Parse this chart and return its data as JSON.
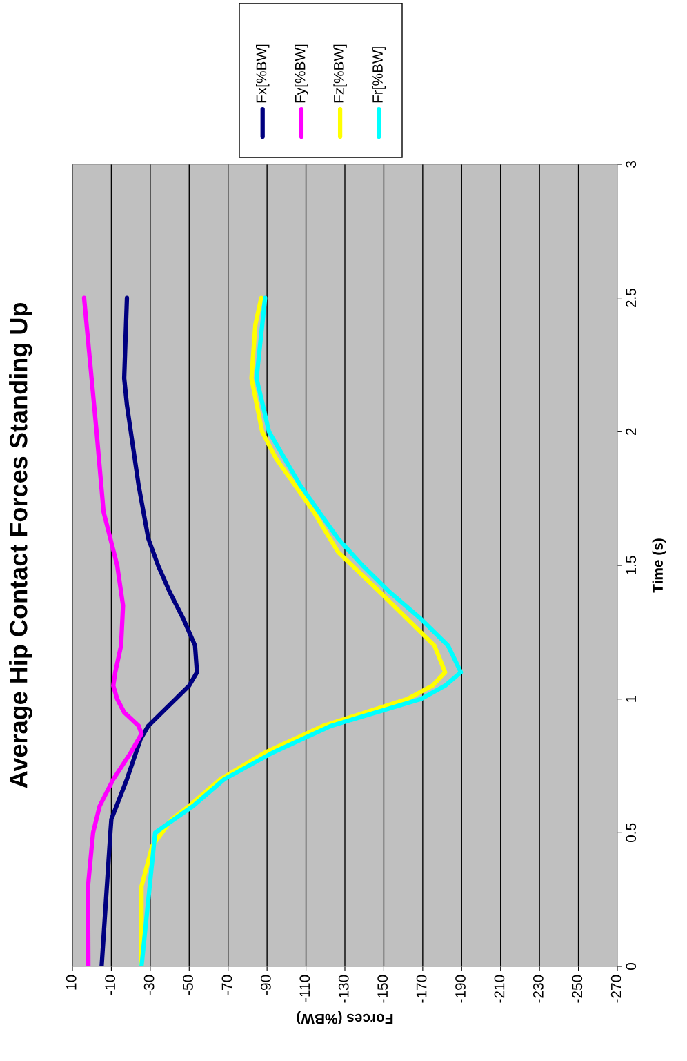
{
  "chart_data": {
    "type": "line",
    "title": "Average Hip Contact Forces Standing Up",
    "xlabel": "Forces (%BW)",
    "ylabel": "Time (s)",
    "xlim": [
      10,
      -270
    ],
    "xticks": [
      10,
      -10,
      -30,
      -50,
      -70,
      -90,
      -110,
      -130,
      -150,
      -170,
      -190,
      -210,
      -230,
      -250,
      -270
    ],
    "ylim": [
      0,
      3
    ],
    "yticks": [
      0,
      0.5,
      1,
      1.5,
      2,
      2.5,
      3
    ],
    "grid": "x",
    "legend": "right",
    "marker": "none",
    "line_style": "solid",
    "series": [
      {
        "name": "Fx[%BW]",
        "color": "#000080",
        "values": [
          0,
          0.5,
          0.55,
          0.7,
          0.85,
          0.9,
          0.95,
          1.0,
          1.05,
          1.1,
          1.2,
          1.3,
          1.4,
          1.5,
          1.6,
          1.8,
          2.0,
          2.1,
          2.2,
          2.5
        ],
        "x": [
          -5,
          -9.5,
          -10,
          -18,
          -25,
          -29,
          -36,
          -43,
          -50,
          -54,
          -53,
          -47,
          -40,
          -34,
          -29,
          -24,
          -20,
          -18,
          -16.6,
          -18
        ]
      },
      {
        "name": "Fy[%BW]",
        "color": "#ff00ff",
        "values": [
          0,
          0.3,
          0.5,
          0.6,
          0.7,
          0.8,
          0.87,
          0.9,
          0.95,
          1.0,
          1.05,
          1.1,
          1.2,
          1.35,
          1.5,
          1.7,
          2.0,
          2.5
        ],
        "x": [
          1.8,
          2,
          -0.6,
          -4,
          -11,
          -20,
          -25.5,
          -24,
          -16.6,
          -13,
          -11,
          -12,
          -15,
          -16,
          -13,
          -6,
          -2.4,
          4
        ]
      },
      {
        "name": "Fz[%BW]",
        "color": "#ffff00",
        "values": [
          0,
          0.3,
          0.45,
          0.55,
          0.6,
          0.7,
          0.8,
          0.9,
          1.0,
          1.05,
          1.1,
          1.2,
          1.3,
          1.4,
          1.55,
          1.7,
          1.9,
          2.0,
          2.2,
          2.4,
          2.5
        ],
        "x": [
          -25.5,
          -25.5,
          -31,
          -41,
          -50,
          -66,
          -89,
          -119,
          -162,
          -175,
          -181.5,
          -176,
          -162,
          -148,
          -126.5,
          -114,
          -94.6,
          -87.5,
          -82,
          -84,
          -87
        ]
      },
      {
        "name": "Fr[%BW]",
        "color": "#00ffff",
        "values": [
          0,
          0.5,
          0.6,
          0.7,
          0.8,
          0.9,
          1.0,
          1.05,
          1.1,
          1.2,
          1.3,
          1.4,
          1.5,
          1.6,
          1.8,
          2.0,
          2.2,
          2.5
        ],
        "x": [
          -25.5,
          -32.5,
          -52,
          -68,
          -93,
          -123,
          -169,
          -181.5,
          -189.6,
          -183,
          -169,
          -153,
          -139,
          -126.5,
          -107,
          -91,
          -84.6,
          -89
        ]
      }
    ]
  }
}
